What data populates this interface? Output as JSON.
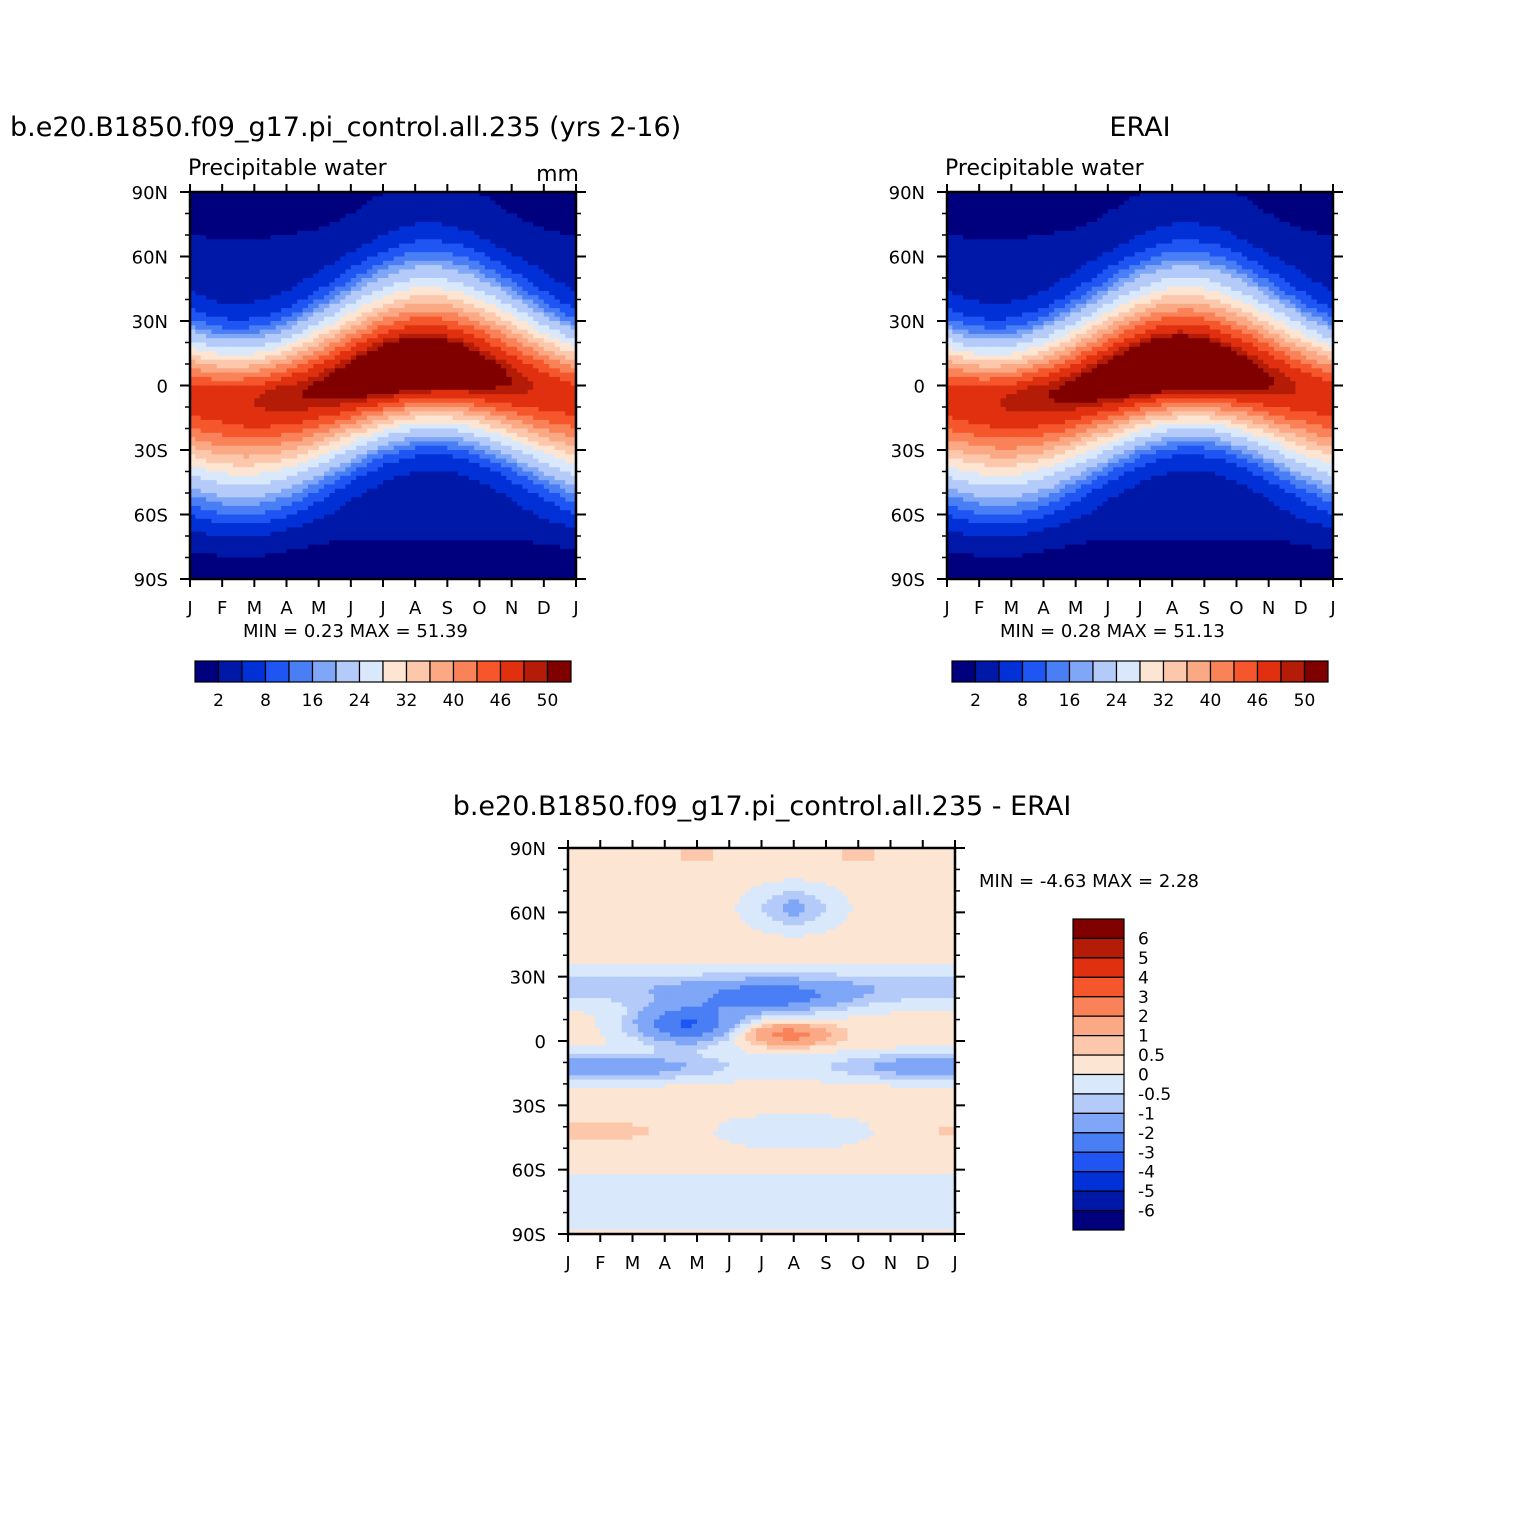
{
  "chart_data": [
    {
      "type": "heatmap",
      "title": "b.e20.B1850.f09_g17.pi_control.all.235 (yrs 2-16)",
      "subtitle_left": "Precipitable water",
      "subtitle_right": "mm",
      "x_ticks": [
        "J",
        "F",
        "M",
        "A",
        "M",
        "J",
        "J",
        "A",
        "S",
        "O",
        "N",
        "D",
        "J"
      ],
      "y_ticks": [
        "90N",
        "60N",
        "30N",
        "0",
        "30S",
        "60S",
        "90S"
      ],
      "stats": "MIN =     0.23  MAX =    51.39",
      "min": 0.23,
      "max": 51.39,
      "colorbar": {
        "orientation": "horizontal",
        "colors": [
          "#00007f",
          "#0018a8",
          "#0030d6",
          "#1f55f2",
          "#4a7ef5",
          "#7fa6f7",
          "#b4cbf9",
          "#d9e9fb",
          "#fde5d3",
          "#fcc7ab",
          "#fba884",
          "#fa8258",
          "#f5562c",
          "#e0300f",
          "#b51c08",
          "#800000"
        ],
        "labels": [
          "2",
          "8",
          "16",
          "24",
          "32",
          "40",
          "46",
          "50"
        ],
        "levels": [
          1,
          2,
          4,
          6,
          8,
          10,
          12,
          16,
          20,
          24,
          28,
          32,
          36,
          40,
          44,
          46,
          48,
          50,
          52
        ],
        "label_step": 2
      }
    },
    {
      "type": "heatmap",
      "title": "ERAI",
      "subtitle_left": "Precipitable water",
      "subtitle_right": "",
      "x_ticks": [
        "J",
        "F",
        "M",
        "A",
        "M",
        "J",
        "J",
        "A",
        "S",
        "O",
        "N",
        "D",
        "J"
      ],
      "y_ticks": [
        "90N",
        "60N",
        "30N",
        "0",
        "30S",
        "60S",
        "90S"
      ],
      "stats": "MIN =     0.28  MAX =    51.13",
      "min": 0.28,
      "max": 51.13,
      "colorbar": {
        "orientation": "horizontal",
        "colors": [
          "#00007f",
          "#0018a8",
          "#0030d6",
          "#1f55f2",
          "#4a7ef5",
          "#7fa6f7",
          "#b4cbf9",
          "#d9e9fb",
          "#fde5d3",
          "#fcc7ab",
          "#fba884",
          "#fa8258",
          "#f5562c",
          "#e0300f",
          "#b51c08",
          "#800000"
        ],
        "labels": [
          "2",
          "8",
          "16",
          "24",
          "32",
          "40",
          "46",
          "50"
        ]
      }
    },
    {
      "type": "heatmap",
      "title": "b.e20.B1850.f09_g17.pi_control.all.235 - ERAI",
      "x_ticks": [
        "J",
        "F",
        "M",
        "A",
        "M",
        "J",
        "J",
        "A",
        "S",
        "O",
        "N",
        "D",
        "J"
      ],
      "y_ticks": [
        "90N",
        "60N",
        "30N",
        "0",
        "30S",
        "60S",
        "90S"
      ],
      "stats": "MIN =   -4.63  MAX =     2.28",
      "min": -4.63,
      "max": 2.28,
      "colorbar": {
        "orientation": "vertical",
        "colors": [
          "#800000",
          "#b51c08",
          "#e0300f",
          "#f5562c",
          "#fa8258",
          "#fba884",
          "#fcc7ab",
          "#fde5d3",
          "#d9e9fb",
          "#b4cbf9",
          "#7fa6f7",
          "#4a7ef5",
          "#1f55f2",
          "#0030d6",
          "#0018a8",
          "#00007f"
        ],
        "labels": [
          "6",
          "5",
          "4",
          "3",
          "2",
          "1",
          "0.5",
          "0",
          "-0.5",
          "-1",
          "-2",
          "-3",
          "-4",
          "-5",
          "-6"
        ]
      }
    }
  ]
}
